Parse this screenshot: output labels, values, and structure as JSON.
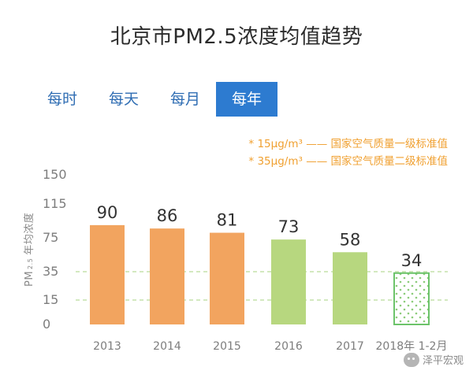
{
  "tabs": [
    {
      "label": "每时",
      "active": false
    },
    {
      "label": "每天",
      "active": false
    },
    {
      "label": "每月",
      "active": false
    },
    {
      "label": "每年",
      "active": true
    }
  ],
  "notes": [
    "* 15μg/m³ —— 国家空气质量一级标准值",
    "* 35μg/m³ —— 国家空气质量二级标准值"
  ],
  "watermark": "泽平宏观",
  "colors": {
    "orange": "#f2a45f",
    "green": "#b7d77f",
    "dotted_green": "#8ccc7a",
    "standard_line": "#b9dc9a",
    "tab_active": "#2d7bd0",
    "note": "#f0a030"
  },
  "chart_data": {
    "type": "bar",
    "title": "北京市PM2.5浓度均值趋势",
    "ylabel_main": "PM",
    "ylabel_sub": "2.5",
    "ylabel_rest": "年均浓度",
    "categories": [
      "2013",
      "2014",
      "2015",
      "2016",
      "2017",
      "2018年 1-2月"
    ],
    "values": [
      90,
      86,
      81,
      73,
      58,
      34
    ],
    "bar_styles": [
      "orange",
      "orange",
      "orange",
      "green",
      "green",
      "dotted"
    ],
    "yticks": [
      0,
      15,
      35,
      75,
      115,
      150
    ],
    "ylim": [
      0,
      150
    ],
    "reference_lines": [
      15,
      35
    ],
    "grid": false
  }
}
